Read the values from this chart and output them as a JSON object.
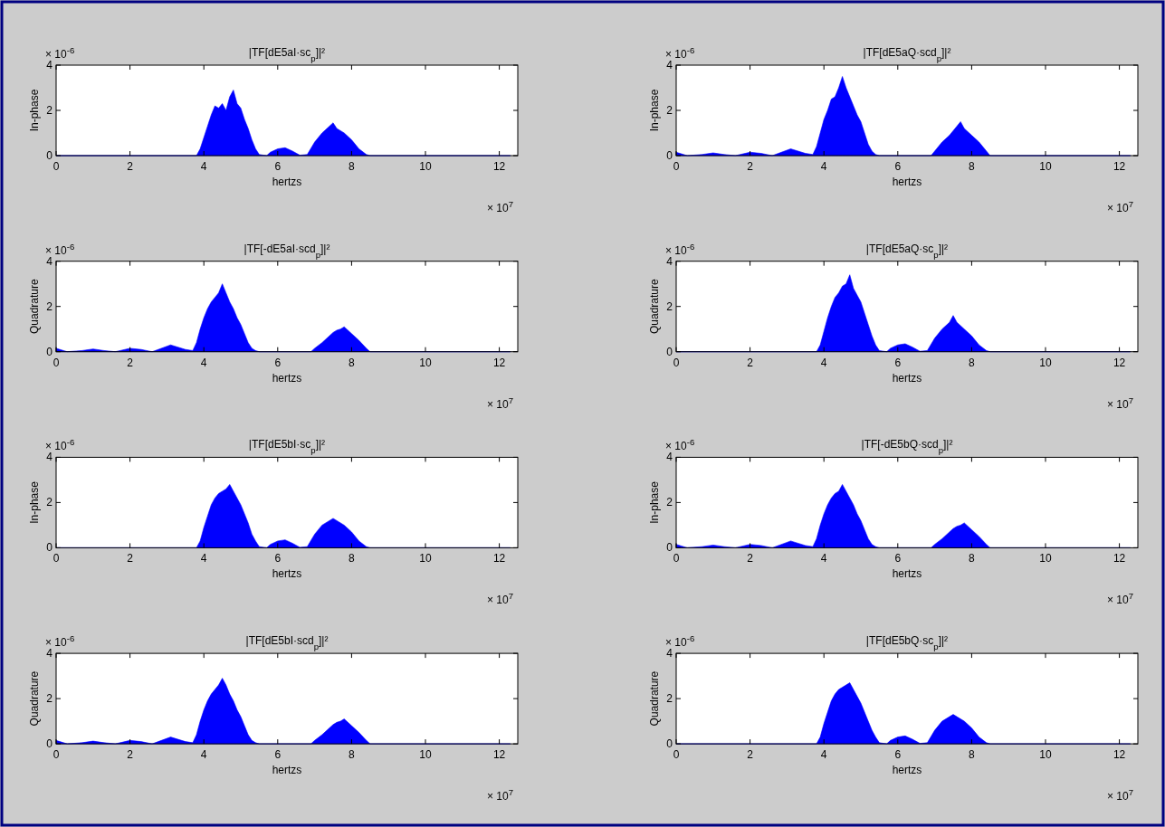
{
  "chart_data": [
    {
      "type": "area",
      "title": "|TF[dE5aI·sc$_{p}$]|²",
      "xlabel": "hertzs",
      "ylabel": "In-phase",
      "annotations": [
        "× 10$^{-6}$",
        "× 10$^{7}$"
      ],
      "xlim": [
        0,
        12.5
      ],
      "xticks": [
        0,
        2,
        4,
        6,
        8,
        10,
        12
      ],
      "ylim": [
        0,
        4
      ],
      "yticks": [
        0,
        2,
        4
      ],
      "grid": false,
      "x": [
        0,
        3.8,
        3.9,
        4.0,
        4.1,
        4.2,
        4.3,
        4.4,
        4.5,
        4.6,
        4.7,
        4.8,
        4.9,
        5.0,
        5.1,
        5.2,
        5.3,
        5.4,
        5.5,
        5.7,
        5.8,
        6.0,
        6.2,
        6.4,
        6.6,
        6.8,
        7.0,
        7.2,
        7.4,
        7.5,
        7.6,
        7.8,
        8.0,
        8.2,
        8.4,
        8.5,
        12.3
      ],
      "series": [
        {
          "color": "#0000ff",
          "values": [
            0,
            0,
            0.3,
            0.8,
            1.3,
            1.8,
            2.2,
            2.1,
            2.3,
            2.0,
            2.6,
            2.9,
            2.3,
            2.1,
            1.6,
            1.2,
            0.7,
            0.3,
            0.05,
            0,
            0.15,
            0.3,
            0.35,
            0.2,
            0.02,
            0.05,
            0.6,
            1.0,
            1.3,
            1.45,
            1.2,
            1.0,
            0.7,
            0.3,
            0.05,
            0,
            0
          ]
        }
      ]
    },
    {
      "type": "area",
      "title": "|TF[dE5aQ·scd$_{p}$]|²",
      "xlabel": "hertzs",
      "ylabel": "In-phase",
      "annotations": [
        "× 10$^{-6}$",
        "× 10$^{7}$"
      ],
      "xlim": [
        0,
        12.5
      ],
      "xticks": [
        0,
        2,
        4,
        6,
        8,
        10,
        12
      ],
      "ylim": [
        0,
        4
      ],
      "yticks": [
        0,
        2,
        4
      ],
      "grid": false,
      "x": [
        0,
        0.1,
        0.3,
        0.7,
        1.0,
        1.3,
        1.6,
        2.0,
        2.3,
        2.6,
        3.1,
        3.5,
        3.7,
        3.8,
        3.9,
        4.0,
        4.1,
        4.2,
        4.3,
        4.4,
        4.5,
        4.6,
        4.7,
        4.8,
        4.9,
        5.0,
        5.1,
        5.2,
        5.3,
        5.4,
        5.5,
        6.9,
        7.0,
        7.2,
        7.4,
        7.5,
        7.6,
        7.7,
        7.8,
        8.0,
        8.2,
        8.4,
        8.5,
        12.3
      ],
      "series": [
        {
          "color": "#0000ff",
          "values": [
            0.15,
            0.1,
            0,
            0.05,
            0.12,
            0.05,
            0,
            0.15,
            0.1,
            0,
            0.3,
            0.1,
            0.05,
            0.4,
            1.0,
            1.6,
            2.0,
            2.5,
            2.6,
            3.0,
            3.5,
            3.0,
            2.6,
            2.2,
            1.8,
            1.5,
            1.0,
            0.5,
            0.2,
            0.05,
            0,
            0,
            0.2,
            0.6,
            0.9,
            1.1,
            1.3,
            1.5,
            1.2,
            0.9,
            0.6,
            0.2,
            0,
            0
          ]
        }
      ]
    },
    {
      "type": "area",
      "title": "|TF[-dE5aI·scd$_{p}$]|²",
      "xlabel": "hertzs",
      "ylabel": "Quadrature",
      "annotations": [
        "× 10$^{-6}$",
        "× 10$^{7}$"
      ],
      "xlim": [
        0,
        12.5
      ],
      "xticks": [
        0,
        2,
        4,
        6,
        8,
        10,
        12
      ],
      "ylim": [
        0,
        4
      ],
      "yticks": [
        0,
        2,
        4
      ],
      "grid": false,
      "x": [
        0,
        0.1,
        0.3,
        0.7,
        1.0,
        1.3,
        1.6,
        2.0,
        2.3,
        2.6,
        3.1,
        3.5,
        3.7,
        3.8,
        3.9,
        4.0,
        4.1,
        4.2,
        4.3,
        4.4,
        4.5,
        4.6,
        4.7,
        4.8,
        4.9,
        5.0,
        5.1,
        5.2,
        5.3,
        5.4,
        5.5,
        6.9,
        7.0,
        7.2,
        7.4,
        7.5,
        7.6,
        7.7,
        7.8,
        8.0,
        8.2,
        8.4,
        8.5,
        12.3
      ],
      "series": [
        {
          "color": "#0000ff",
          "values": [
            0.15,
            0.1,
            0,
            0.05,
            0.12,
            0.05,
            0,
            0.15,
            0.1,
            0,
            0.3,
            0.1,
            0.05,
            0.4,
            1.0,
            1.5,
            1.9,
            2.2,
            2.4,
            2.6,
            3.0,
            2.6,
            2.2,
            1.9,
            1.5,
            1.2,
            0.8,
            0.4,
            0.15,
            0.05,
            0,
            0,
            0.15,
            0.4,
            0.7,
            0.85,
            0.95,
            1.0,
            1.1,
            0.8,
            0.5,
            0.15,
            0,
            0
          ]
        }
      ]
    },
    {
      "type": "area",
      "title": "|TF[dE5aQ·sc$_{p}$]|²",
      "xlabel": "hertzs",
      "ylabel": "Quadrature",
      "annotations": [
        "× 10$^{-6}$",
        "× 10$^{7}$"
      ],
      "xlim": [
        0,
        12.5
      ],
      "xticks": [
        0,
        2,
        4,
        6,
        8,
        10,
        12
      ],
      "ylim": [
        0,
        4
      ],
      "yticks": [
        0,
        2,
        4
      ],
      "grid": false,
      "x": [
        0,
        3.8,
        3.9,
        4.0,
        4.1,
        4.2,
        4.3,
        4.4,
        4.5,
        4.6,
        4.7,
        4.8,
        4.9,
        5.0,
        5.1,
        5.2,
        5.3,
        5.4,
        5.5,
        5.7,
        5.8,
        6.0,
        6.2,
        6.4,
        6.6,
        6.8,
        7.0,
        7.2,
        7.4,
        7.5,
        7.6,
        7.8,
        8.0,
        8.2,
        8.4,
        8.5,
        12.3
      ],
      "series": [
        {
          "color": "#0000ff",
          "values": [
            0,
            0,
            0.3,
            0.9,
            1.5,
            2.0,
            2.4,
            2.6,
            2.9,
            3.0,
            3.4,
            2.8,
            2.5,
            2.2,
            1.7,
            1.2,
            0.7,
            0.3,
            0.05,
            0,
            0.15,
            0.3,
            0.35,
            0.2,
            0.02,
            0.05,
            0.6,
            1.0,
            1.3,
            1.6,
            1.3,
            1.0,
            0.7,
            0.3,
            0.05,
            0,
            0
          ]
        }
      ]
    },
    {
      "type": "area",
      "title": "|TF[dE5bI·sc$_{p}$]|²",
      "xlabel": "hertzs",
      "ylabel": "In-phase",
      "annotations": [
        "× 10$^{-6}$",
        "× 10$^{7}$"
      ],
      "xlim": [
        0,
        12.5
      ],
      "xticks": [
        0,
        2,
        4,
        6,
        8,
        10,
        12
      ],
      "ylim": [
        0,
        4
      ],
      "yticks": [
        0,
        2,
        4
      ],
      "grid": false,
      "x": [
        0,
        3.8,
        3.9,
        4.0,
        4.1,
        4.2,
        4.3,
        4.4,
        4.5,
        4.6,
        4.7,
        4.8,
        4.9,
        5.0,
        5.1,
        5.2,
        5.3,
        5.4,
        5.5,
        5.7,
        5.8,
        6.0,
        6.2,
        6.4,
        6.6,
        6.8,
        7.0,
        7.2,
        7.4,
        7.5,
        7.6,
        7.8,
        8.0,
        8.2,
        8.4,
        8.5,
        12.3
      ],
      "series": [
        {
          "color": "#0000ff",
          "values": [
            0,
            0,
            0.3,
            0.9,
            1.4,
            1.9,
            2.2,
            2.4,
            2.5,
            2.6,
            2.8,
            2.5,
            2.2,
            1.9,
            1.5,
            1.1,
            0.6,
            0.3,
            0.05,
            0,
            0.15,
            0.3,
            0.35,
            0.2,
            0.02,
            0.05,
            0.6,
            1.0,
            1.2,
            1.3,
            1.2,
            1.0,
            0.7,
            0.3,
            0.05,
            0,
            0
          ]
        }
      ]
    },
    {
      "type": "area",
      "title": "|TF[-dE5bQ·scd$_{p}$]|²",
      "xlabel": "hertzs",
      "ylabel": "In-phase",
      "annotations": [
        "× 10$^{-6}$",
        "× 10$^{7}$"
      ],
      "xlim": [
        0,
        12.5
      ],
      "xticks": [
        0,
        2,
        4,
        6,
        8,
        10,
        12
      ],
      "ylim": [
        0,
        4
      ],
      "yticks": [
        0,
        2,
        4
      ],
      "grid": false,
      "x": [
        0,
        0.1,
        0.3,
        0.7,
        1.0,
        1.3,
        1.6,
        2.0,
        2.3,
        2.6,
        3.1,
        3.5,
        3.7,
        3.8,
        3.9,
        4.0,
        4.1,
        4.2,
        4.3,
        4.4,
        4.5,
        4.6,
        4.7,
        4.8,
        4.9,
        5.0,
        5.1,
        5.2,
        5.3,
        5.4,
        5.5,
        6.9,
        7.0,
        7.2,
        7.4,
        7.5,
        7.6,
        7.7,
        7.8,
        8.0,
        8.2,
        8.4,
        8.5,
        12.3
      ],
      "series": [
        {
          "color": "#0000ff",
          "values": [
            0.15,
            0.1,
            0,
            0.05,
            0.12,
            0.05,
            0,
            0.15,
            0.1,
            0,
            0.3,
            0.1,
            0.05,
            0.4,
            1.0,
            1.5,
            1.9,
            2.2,
            2.4,
            2.5,
            2.8,
            2.5,
            2.2,
            1.9,
            1.5,
            1.2,
            0.8,
            0.4,
            0.15,
            0.05,
            0,
            0,
            0.15,
            0.4,
            0.7,
            0.85,
            0.95,
            1.0,
            1.1,
            0.8,
            0.5,
            0.15,
            0,
            0
          ]
        }
      ]
    },
    {
      "type": "area",
      "title": "|TF[dE5bI·scd$_{p}$]|²",
      "xlabel": "hertzs",
      "ylabel": "Quadrature",
      "annotations": [
        "× 10$^{-6}$",
        "× 10$^{7}$"
      ],
      "xlim": [
        0,
        12.5
      ],
      "xticks": [
        0,
        2,
        4,
        6,
        8,
        10,
        12
      ],
      "ylim": [
        0,
        4
      ],
      "yticks": [
        0,
        2,
        4
      ],
      "grid": false,
      "x": [
        0,
        0.1,
        0.3,
        0.7,
        1.0,
        1.3,
        1.6,
        2.0,
        2.3,
        2.6,
        3.1,
        3.5,
        3.7,
        3.8,
        3.9,
        4.0,
        4.1,
        4.2,
        4.3,
        4.4,
        4.5,
        4.6,
        4.7,
        4.8,
        4.9,
        5.0,
        5.1,
        5.2,
        5.3,
        5.4,
        5.5,
        6.9,
        7.0,
        7.2,
        7.4,
        7.5,
        7.6,
        7.7,
        7.8,
        8.0,
        8.2,
        8.4,
        8.5,
        12.3
      ],
      "series": [
        {
          "color": "#0000ff",
          "values": [
            0.15,
            0.1,
            0,
            0.05,
            0.12,
            0.05,
            0,
            0.15,
            0.1,
            0,
            0.3,
            0.1,
            0.05,
            0.4,
            1.0,
            1.5,
            1.9,
            2.2,
            2.4,
            2.6,
            2.9,
            2.6,
            2.2,
            1.9,
            1.5,
            1.2,
            0.8,
            0.4,
            0.15,
            0.05,
            0,
            0,
            0.15,
            0.4,
            0.7,
            0.85,
            0.95,
            1.0,
            1.1,
            0.8,
            0.5,
            0.15,
            0,
            0
          ]
        }
      ]
    },
    {
      "type": "area",
      "title": "|TF[dE5bQ·sc$_{p}$]|²",
      "xlabel": "hertzs",
      "ylabel": "Quadrature",
      "annotations": [
        "× 10$^{-6}$",
        "× 10$^{7}$"
      ],
      "xlim": [
        0,
        12.5
      ],
      "xticks": [
        0,
        2,
        4,
        6,
        8,
        10,
        12
      ],
      "ylim": [
        0,
        4
      ],
      "yticks": [
        0,
        2,
        4
      ],
      "grid": false,
      "x": [
        0,
        3.8,
        3.9,
        4.0,
        4.1,
        4.2,
        4.3,
        4.4,
        4.5,
        4.6,
        4.7,
        4.8,
        4.9,
        5.0,
        5.1,
        5.2,
        5.3,
        5.4,
        5.5,
        5.7,
        5.8,
        6.0,
        6.2,
        6.4,
        6.6,
        6.8,
        7.0,
        7.2,
        7.4,
        7.5,
        7.6,
        7.8,
        8.0,
        8.2,
        8.4,
        8.5,
        12.3
      ],
      "series": [
        {
          "color": "#0000ff",
          "values": [
            0,
            0,
            0.3,
            0.9,
            1.4,
            1.9,
            2.2,
            2.4,
            2.5,
            2.6,
            2.7,
            2.4,
            2.1,
            1.8,
            1.4,
            1.0,
            0.6,
            0.3,
            0.05,
            0,
            0.15,
            0.3,
            0.35,
            0.2,
            0.02,
            0.05,
            0.6,
            1.0,
            1.2,
            1.3,
            1.2,
            1.0,
            0.7,
            0.3,
            0.05,
            0,
            0
          ]
        }
      ]
    }
  ]
}
